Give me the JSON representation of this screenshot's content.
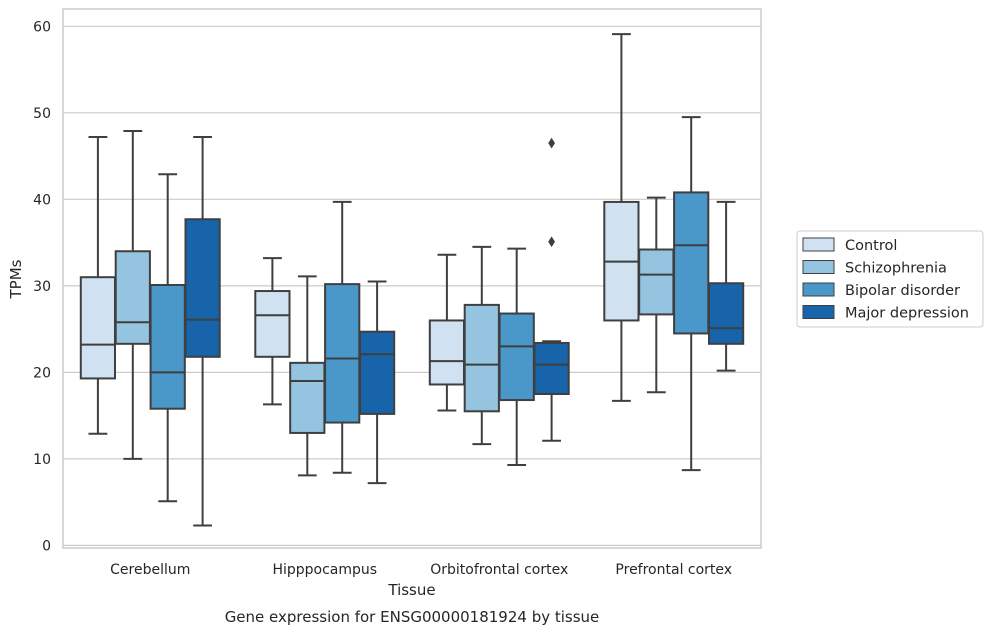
{
  "colors": {
    "series": [
      "#d0e1f2",
      "#94c4df",
      "#4a98c9",
      "#1764ab"
    ],
    "box_edge": "#3f3f3f",
    "grid": "#cccccc",
    "frame": "#cccccc"
  },
  "chart_data": {
    "type": "box",
    "title": "Gene expression for ENSG00000181924 by tissue",
    "xlabel": "Tissue",
    "ylabel": "TPMs",
    "ylim": [
      -0.3,
      62.0
    ],
    "yticks": [
      0,
      10,
      20,
      30,
      40,
      50,
      60
    ],
    "grid": true,
    "legend_position": "right",
    "categories": [
      "Cerebellum",
      "Hipppocampus",
      "Orbitofrontal cortex",
      "Prefrontal cortex"
    ],
    "series": [
      {
        "name": "Control",
        "boxes": [
          {
            "whisker_low": 12.9,
            "q1": 19.3,
            "median": 23.2,
            "q3": 31.0,
            "whisker_high": 47.2,
            "outliers": []
          },
          {
            "whisker_low": 16.3,
            "q1": 21.8,
            "median": 26.6,
            "q3": 29.4,
            "whisker_high": 33.2,
            "outliers": []
          },
          {
            "whisker_low": 15.6,
            "q1": 18.6,
            "median": 21.3,
            "q3": 26.0,
            "whisker_high": 33.6,
            "outliers": []
          },
          {
            "whisker_low": 16.7,
            "q1": 26.0,
            "median": 32.8,
            "q3": 39.7,
            "whisker_high": 59.1,
            "outliers": []
          }
        ]
      },
      {
        "name": "Schizophrenia",
        "boxes": [
          {
            "whisker_low": 10.0,
            "q1": 23.3,
            "median": 25.8,
            "q3": 34.0,
            "whisker_high": 47.9,
            "outliers": []
          },
          {
            "whisker_low": 8.1,
            "q1": 13.0,
            "median": 19.0,
            "q3": 21.1,
            "whisker_high": 31.1,
            "outliers": []
          },
          {
            "whisker_low": 11.7,
            "q1": 15.5,
            "median": 20.9,
            "q3": 27.8,
            "whisker_high": 34.5,
            "outliers": []
          },
          {
            "whisker_low": 17.7,
            "q1": 26.7,
            "median": 31.3,
            "q3": 34.2,
            "whisker_high": 40.2,
            "outliers": []
          }
        ]
      },
      {
        "name": "Bipolar disorder",
        "boxes": [
          {
            "whisker_low": 5.1,
            "q1": 15.8,
            "median": 20.0,
            "q3": 30.1,
            "whisker_high": 42.9,
            "outliers": []
          },
          {
            "whisker_low": 8.4,
            "q1": 14.2,
            "median": 21.6,
            "q3": 30.2,
            "whisker_high": 39.7,
            "outliers": []
          },
          {
            "whisker_low": 9.3,
            "q1": 16.8,
            "median": 23.0,
            "q3": 26.8,
            "whisker_high": 34.3,
            "outliers": []
          },
          {
            "whisker_low": 8.7,
            "q1": 24.5,
            "median": 34.7,
            "q3": 40.8,
            "whisker_high": 49.5,
            "outliers": []
          }
        ]
      },
      {
        "name": "Major depression",
        "boxes": [
          {
            "whisker_low": 2.3,
            "q1": 21.8,
            "median": 26.1,
            "q3": 37.7,
            "whisker_high": 47.2,
            "outliers": []
          },
          {
            "whisker_low": 7.2,
            "q1": 15.2,
            "median": 22.1,
            "q3": 24.7,
            "whisker_high": 30.5,
            "outliers": []
          },
          {
            "whisker_low": 12.1,
            "q1": 17.5,
            "median": 20.9,
            "q3": 23.4,
            "whisker_high": 23.6,
            "outliers": [
              35.1,
              46.5
            ]
          },
          {
            "whisker_low": 20.2,
            "q1": 23.3,
            "median": 25.1,
            "q3": 30.3,
            "whisker_high": 39.7,
            "outliers": []
          }
        ]
      }
    ]
  }
}
